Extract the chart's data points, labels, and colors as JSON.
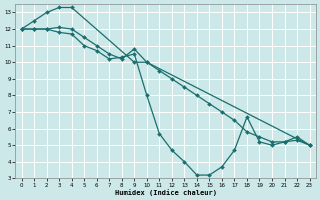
{
  "background_color": "#cce8e8",
  "grid_color": "#ffffff",
  "line_color": "#1a6e6e",
  "xlabel": "Humidex (Indice chaleur)",
  "xlim": [
    -0.5,
    23.5
  ],
  "ylim": [
    3,
    13.5
  ],
  "yticks": [
    3,
    4,
    5,
    6,
    7,
    8,
    9,
    10,
    11,
    12,
    13
  ],
  "xticks": [
    0,
    1,
    2,
    3,
    4,
    5,
    6,
    7,
    8,
    9,
    10,
    11,
    12,
    13,
    14,
    15,
    16,
    17,
    18,
    19,
    20,
    21,
    22,
    23
  ],
  "line1_x": [
    0,
    1,
    2,
    3,
    4,
    9,
    10,
    23
  ],
  "line1_y": [
    12,
    12.5,
    13,
    13.3,
    13.3,
    10.0,
    10.0,
    5.0
  ],
  "line2_x": [
    0,
    1,
    2,
    3,
    4,
    5,
    6,
    7,
    8,
    9,
    10,
    11,
    12,
    13,
    14,
    15,
    16,
    17,
    18,
    19,
    20,
    21,
    22,
    23
  ],
  "line2_y": [
    12,
    12,
    12,
    11.8,
    11.7,
    11.0,
    10.7,
    10.2,
    10.3,
    10.5,
    8.0,
    5.7,
    4.7,
    4.0,
    3.2,
    3.2,
    3.7,
    4.7,
    6.7,
    5.2,
    5.0,
    5.2,
    5.5,
    5.0
  ],
  "line3_x": [
    0,
    1,
    2,
    3,
    4,
    5,
    6,
    7,
    8,
    9,
    10,
    11,
    12,
    13,
    14,
    15,
    16,
    17,
    18,
    19,
    20,
    21,
    22,
    23
  ],
  "line3_y": [
    12,
    12,
    12,
    12.1,
    12.0,
    11.5,
    11.0,
    10.5,
    10.2,
    10.8,
    10.0,
    9.5,
    9.0,
    8.5,
    8.0,
    7.5,
    7.0,
    6.5,
    5.8,
    5.5,
    5.2,
    5.2,
    5.3,
    5.0
  ]
}
